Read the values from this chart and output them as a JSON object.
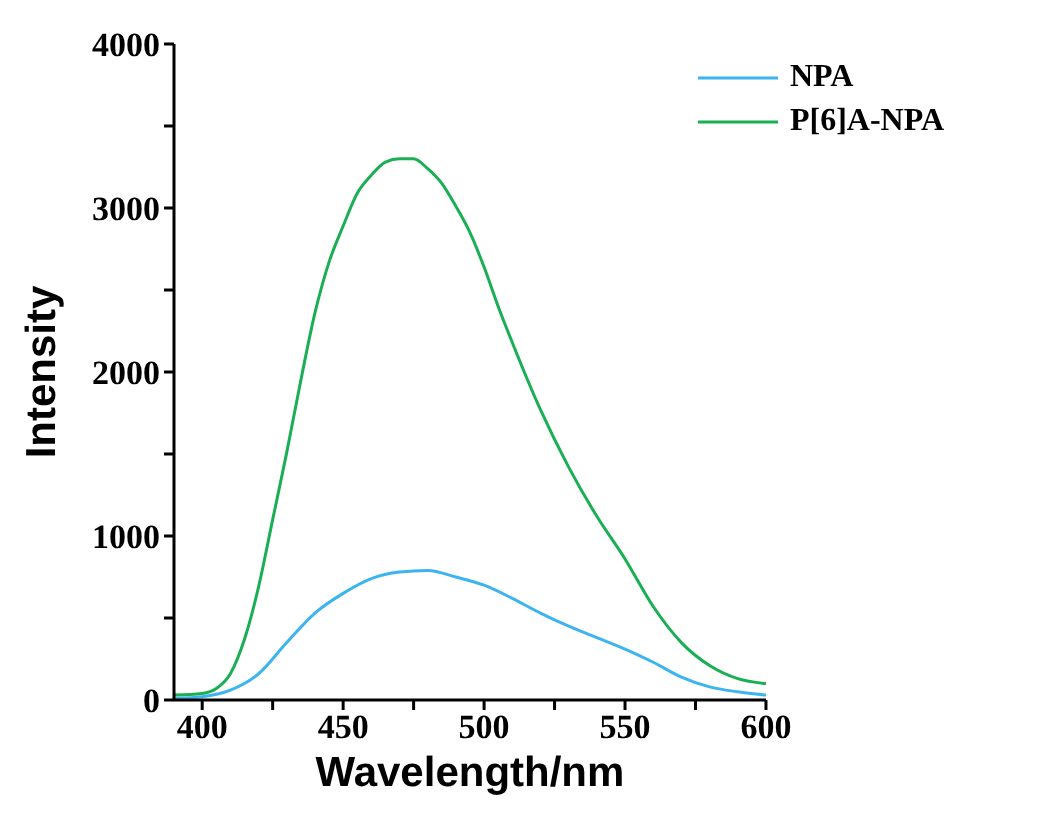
{
  "chart_data": {
    "type": "line",
    "xlabel": "Wavelength/nm",
    "ylabel": "Intensity",
    "legend": "top right",
    "xlim": [
      390,
      600
    ],
    "ylim": [
      0,
      4000
    ],
    "xticks": [
      400,
      {
        "value": 425,
        "label": null
      },
      450,
      {
        "value": 475,
        "label": null
      },
      500,
      {
        "value": 525,
        "label": null
      },
      550,
      {
        "value": 575,
        "label": null
      },
      600
    ],
    "yticks": [
      0,
      {
        "value": 500,
        "label": null
      },
      1000,
      {
        "value": 1500,
        "label": null
      },
      2000,
      {
        "value": 2500,
        "label": null
      },
      3000,
      {
        "value": 3500,
        "label": null
      },
      4000
    ],
    "series": [
      {
        "name": "NPA",
        "color": "#3cb4f0",
        "x": [
          390,
          400,
          410,
          420,
          430,
          440,
          450,
          460,
          470,
          480,
          490,
          500,
          510,
          520,
          530,
          540,
          550,
          560,
          570,
          580,
          590,
          600
        ],
        "values": [
          10,
          20,
          60,
          160,
          350,
          530,
          650,
          740,
          780,
          790,
          750,
          700,
          620,
          530,
          450,
          380,
          310,
          230,
          140,
          80,
          50,
          30
        ]
      },
      {
        "name": "P[6]A-NPA",
        "color": "#1aaf54",
        "x": [
          390,
          400,
          405,
          410,
          415,
          420,
          425,
          430,
          435,
          440,
          445,
          450,
          455,
          460,
          465,
          470,
          475,
          480,
          485,
          490,
          495,
          500,
          505,
          510,
          520,
          530,
          540,
          550,
          560,
          570,
          580,
          590,
          600
        ],
        "values": [
          30,
          40,
          70,
          160,
          370,
          690,
          1100,
          1510,
          1950,
          2360,
          2670,
          2890,
          3090,
          3200,
          3280,
          3300,
          3300,
          3240,
          3150,
          3010,
          2850,
          2640,
          2400,
          2180,
          1770,
          1420,
          1120,
          860,
          570,
          350,
          210,
          130,
          100
        ]
      }
    ]
  }
}
